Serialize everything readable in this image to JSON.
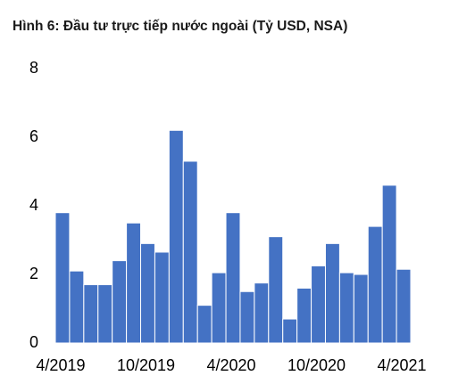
{
  "chart_data": {
    "type": "bar",
    "title": "Hình 6: Đầu tư trực tiếp nước ngoài (Tỷ USD, NSA)",
    "categories": [
      "4/2019",
      null,
      null,
      null,
      null,
      null,
      "10/2019",
      null,
      null,
      null,
      null,
      null,
      "4/2020",
      null,
      null,
      null,
      null,
      null,
      "10/2020",
      null,
      null,
      null,
      null,
      null,
      "4/2021"
    ],
    "values": [
      3.8,
      2.1,
      1.7,
      1.7,
      2.4,
      3.5,
      2.9,
      2.65,
      6.2,
      5.3,
      1.1,
      2.05,
      3.8,
      1.5,
      1.75,
      3.1,
      0.7,
      1.6,
      2.25,
      2.9,
      2.05,
      2.0,
      3.4,
      4.6,
      2.15
    ],
    "color": "#4472c4",
    "ylim": [
      0,
      8
    ],
    "yticks": [
      0,
      2,
      4,
      6,
      8
    ],
    "grid": false
  }
}
